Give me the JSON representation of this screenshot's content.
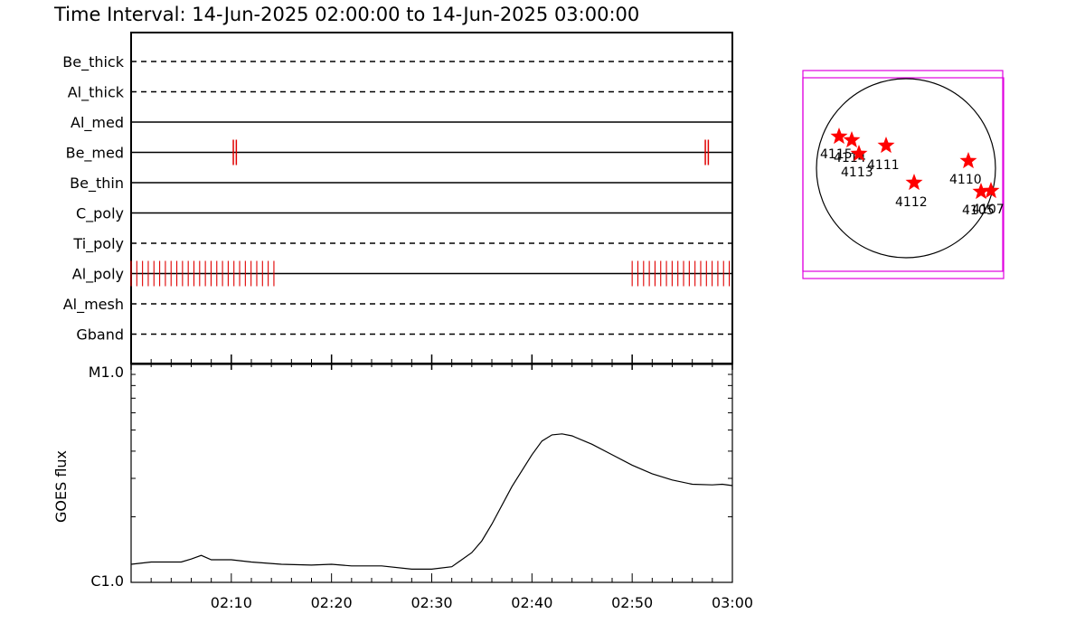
{
  "chart_data": {
    "title": "Time Interval: 14-Jun-2025 02:00:00 to 14-Jun-2025 03:00:00",
    "timeline": {
      "type": "timeline",
      "x_range_minutes": [
        0,
        60
      ],
      "x_tick_labels": [
        "02:10",
        "02:20",
        "02:30",
        "02:40",
        "02:50",
        "03:00"
      ],
      "rows": [
        {
          "name": "Be_thick",
          "style": "dashed",
          "marks": []
        },
        {
          "name": "Al_thick",
          "style": "dashed",
          "marks": []
        },
        {
          "name": "Al_med",
          "style": "solid",
          "marks": []
        },
        {
          "name": "Be_med",
          "style": "solid",
          "marks": [
            [
              10.2,
              10.5
            ],
            [
              57.3,
              57.6
            ]
          ]
        },
        {
          "name": "Be_thin",
          "style": "solid",
          "marks": []
        },
        {
          "name": "C_poly",
          "style": "solid",
          "marks": []
        },
        {
          "name": "Ti_poly",
          "style": "dashed",
          "marks": []
        },
        {
          "name": "Al_poly",
          "style": "solid",
          "marks_dense": [
            [
              0,
              14.8
            ],
            [
              50,
              59.8
            ]
          ]
        },
        {
          "name": "Al_mesh",
          "style": "dashed",
          "marks": []
        },
        {
          "name": "Gband",
          "style": "dashed",
          "marks": []
        }
      ],
      "mark_color": "#e00000"
    },
    "goes": {
      "type": "line",
      "ylabel": "GOES flux",
      "y_scale": "log",
      "y_tick_labels": [
        "M1.0",
        "C1.0"
      ],
      "x": [
        0,
        2,
        5,
        6,
        7,
        8,
        10,
        12,
        15,
        18,
        20,
        22,
        25,
        28,
        30,
        32,
        34,
        35,
        36,
        38,
        40,
        41,
        42,
        43,
        44,
        46,
        48,
        50,
        52,
        54,
        56,
        58,
        59,
        60
      ],
      "y": [
        1.21,
        1.24,
        1.24,
        1.28,
        1.33,
        1.27,
        1.27,
        1.24,
        1.21,
        1.2,
        1.21,
        1.19,
        1.19,
        1.15,
        1.15,
        1.18,
        1.37,
        1.55,
        1.85,
        2.75,
        3.85,
        4.45,
        4.75,
        4.8,
        4.7,
        4.3,
        3.85,
        3.45,
        3.15,
        2.95,
        2.82,
        2.8,
        2.82,
        2.78
      ],
      "color": "#000000"
    },
    "solar_map": {
      "box_color": "#e000e0",
      "marker_color": "#ff0000",
      "regions": [
        {
          "label": "4115"
        },
        {
          "label": "4114"
        },
        {
          "label": "4113"
        },
        {
          "label": "4111"
        },
        {
          "label": "4112"
        },
        {
          "label": "4110"
        },
        {
          "label": "4105"
        },
        {
          "label": "4107"
        }
      ]
    }
  }
}
